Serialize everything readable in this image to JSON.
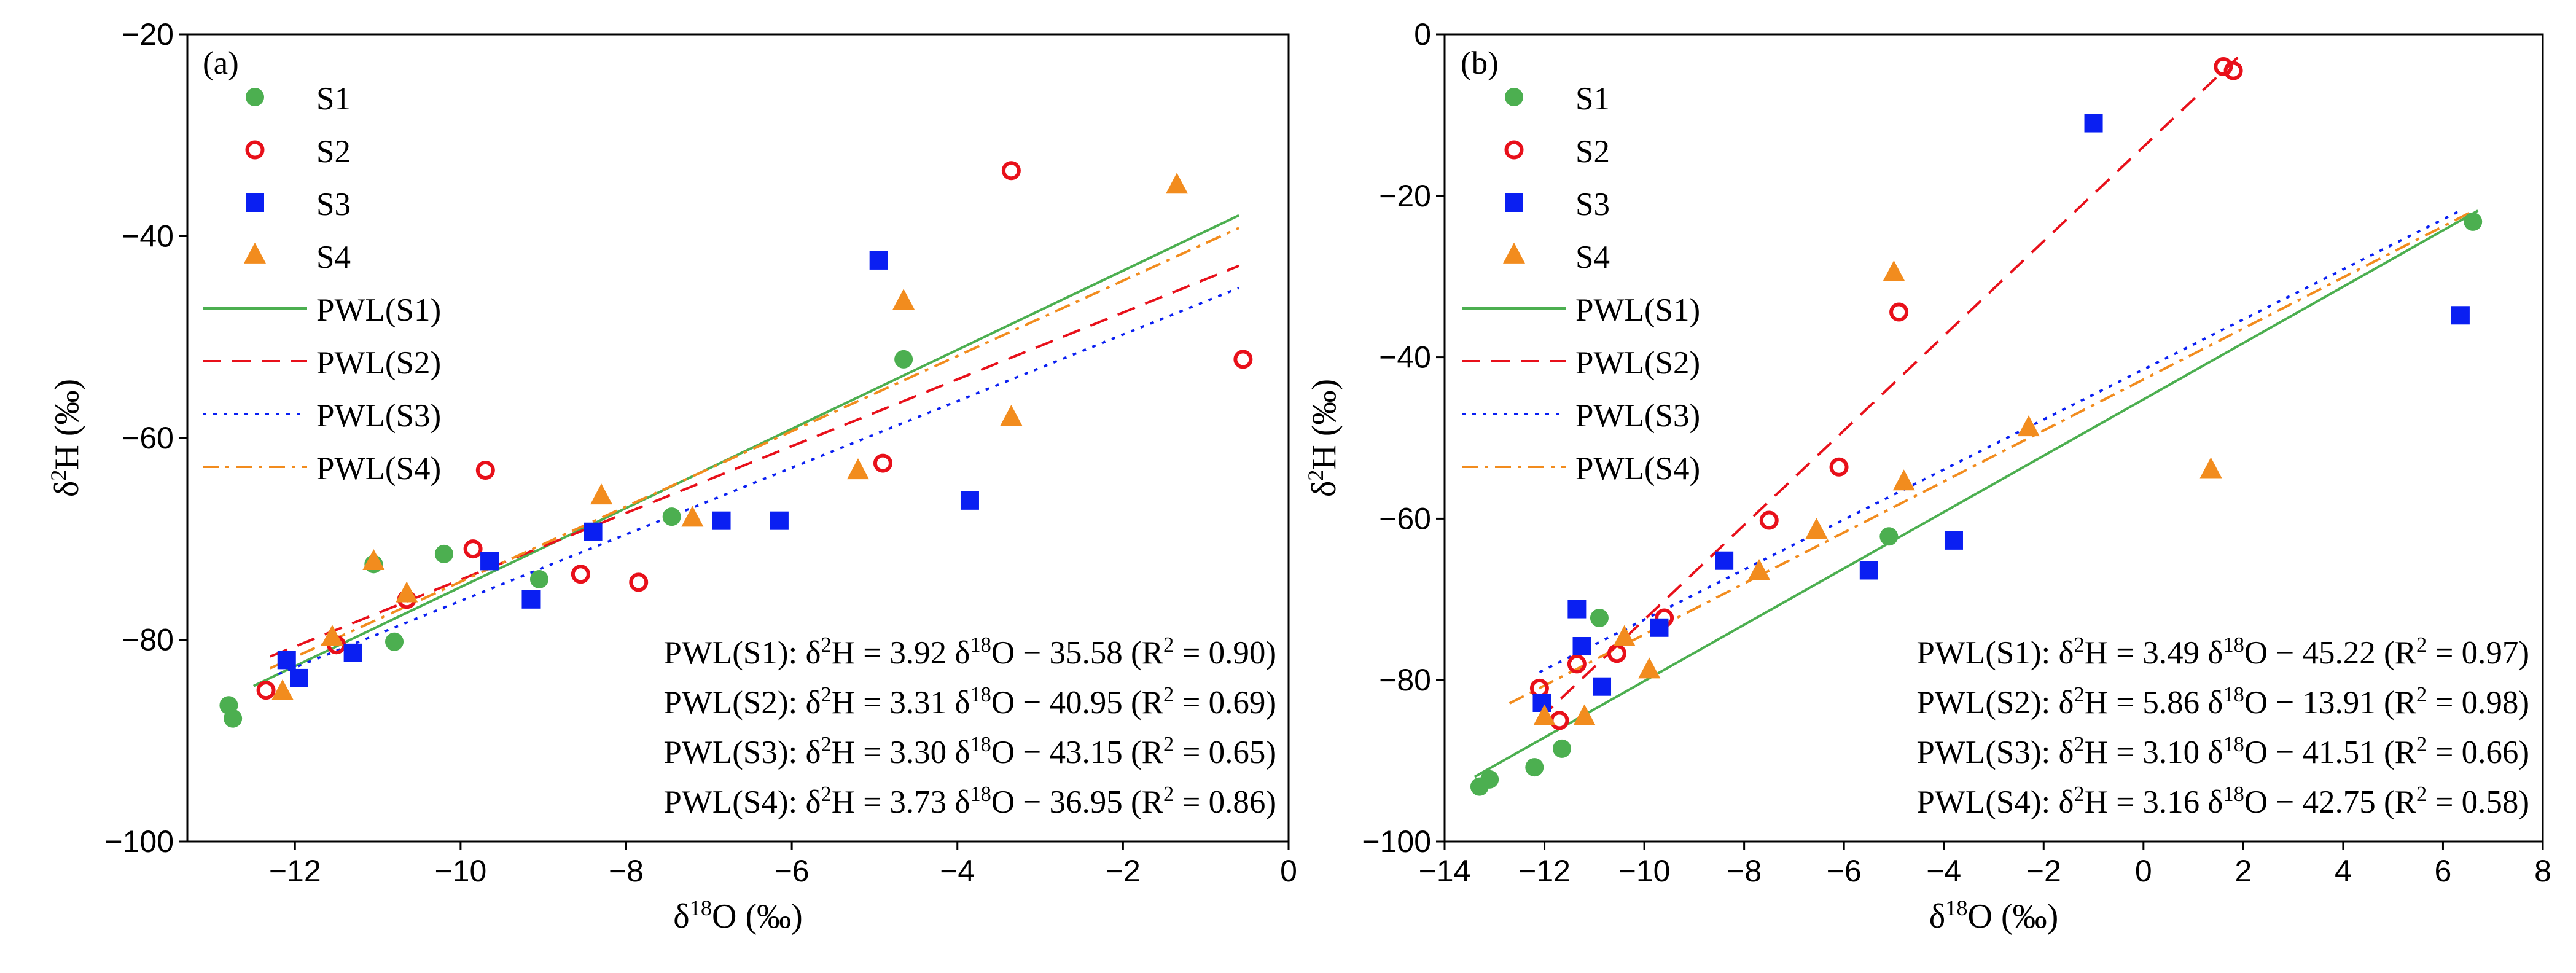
{
  "colors": {
    "S1": "#4caf50",
    "S2": "#e8101a",
    "S3": "#0a1ff2",
    "S4": "#f28c1e"
  },
  "chart_data": [
    {
      "type": "scatter",
      "panel": "(a)",
      "xlabel_main": "δ",
      "xlabel_sup": "18",
      "xlabel_rest": "O (‰)",
      "ylabel_main": "δ",
      "ylabel_sup": "2",
      "ylabel_rest": "H (‰)",
      "xlim": [
        -13.3,
        0
      ],
      "ylim": [
        -100,
        -20
      ],
      "xticks": [
        -12,
        -10,
        -8,
        -6,
        -4,
        -2,
        0
      ],
      "xtick_labels": [
        "−12",
        "−10",
        "−8",
        "−6",
        "−4",
        "−2",
        "0"
      ],
      "yticks": [
        -100,
        -80,
        -60,
        -40,
        -20
      ],
      "ytick_labels": [
        "−100",
        "−80",
        "−60",
        "−40",
        "−20"
      ],
      "legend": [
        "S1",
        "S2",
        "S3",
        "S4",
        "PWL(S1)",
        "PWL(S2)",
        "PWL(S3)",
        "PWL(S4)"
      ],
      "series": [
        {
          "name": "S1",
          "marker": "circle-filled",
          "x": [
            -12.8,
            -12.75,
            -11.05,
            -10.8,
            -10.2,
            -9.05,
            -7.45,
            -4.65
          ],
          "y": [
            -86.5,
            -87.8,
            -72.5,
            -80.2,
            -71.5,
            -74.0,
            -67.8,
            -52.2
          ]
        },
        {
          "name": "S2",
          "marker": "circle-open",
          "x": [
            -12.35,
            -11.5,
            -10.65,
            -9.85,
            -9.7,
            -8.55,
            -7.85,
            -4.9,
            -3.35,
            -0.55
          ],
          "y": [
            -85.0,
            -80.5,
            -76.0,
            -71.0,
            -63.2,
            -73.5,
            -74.3,
            -62.5,
            -33.5,
            -52.2
          ]
        },
        {
          "name": "S3",
          "marker": "square-filled",
          "x": [
            -12.1,
            -11.95,
            -11.3,
            -9.65,
            -9.15,
            -8.4,
            -6.85,
            -6.15,
            -4.95,
            -3.85
          ],
          "y": [
            -82.0,
            -83.8,
            -81.3,
            -72.2,
            -76.0,
            -69.3,
            -68.2,
            -68.2,
            -42.4,
            -66.2
          ]
        },
        {
          "name": "S4",
          "marker": "triangle-filled",
          "x": [
            -12.15,
            -11.55,
            -11.05,
            -10.65,
            -8.3,
            -7.2,
            -5.2,
            -4.65,
            -3.35,
            -1.35
          ],
          "y": [
            -85.2,
            -79.8,
            -72.3,
            -75.5,
            -65.8,
            -68.0,
            -63.3,
            -46.5,
            -58.0,
            -35.0
          ]
        }
      ],
      "fits": [
        {
          "name": "PWL(S1)",
          "style": "solid",
          "slope": 3.92,
          "intercept": -35.58,
          "x_range": [
            -12.5,
            -0.6
          ]
        },
        {
          "name": "PWL(S2)",
          "style": "dashed",
          "slope": 3.31,
          "intercept": -40.95,
          "x_range": [
            -12.3,
            -0.6
          ]
        },
        {
          "name": "PWL(S3)",
          "style": "dotted",
          "slope": 3.3,
          "intercept": -43.15,
          "x_range": [
            -12.2,
            -0.6
          ]
        },
        {
          "name": "PWL(S4)",
          "style": "dashdot",
          "slope": 3.73,
          "intercept": -36.95,
          "x_range": [
            -12.3,
            -0.6
          ]
        }
      ],
      "equations": [
        {
          "pre": "PWL(S1): δ",
          "sup1": "2",
          "mid": "H = 3.92 δ",
          "sup2": "18",
          "post": "O − 35.58 (R",
          "sup3": "2",
          "end": " = 0.90)"
        },
        {
          "pre": "PWL(S2): δ",
          "sup1": "2",
          "mid": "H = 3.31 δ",
          "sup2": "18",
          "post": "O − 40.95 (R",
          "sup3": "2",
          "end": " = 0.69)"
        },
        {
          "pre": "PWL(S3): δ",
          "sup1": "2",
          "mid": "H = 3.30 δ",
          "sup2": "18",
          "post": "O − 43.15 (R",
          "sup3": "2",
          "end": " = 0.65)"
        },
        {
          "pre": "PWL(S4): δ",
          "sup1": "2",
          "mid": "H = 3.73 δ",
          "sup2": "18",
          "post": "O − 36.95 (R",
          "sup3": "2",
          "end": " = 0.86)"
        }
      ]
    },
    {
      "type": "scatter",
      "panel": "(b)",
      "xlabel_main": "δ",
      "xlabel_sup": "18",
      "xlabel_rest": "O (‰)",
      "ylabel_main": "δ",
      "ylabel_sup": "2",
      "ylabel_rest": "H (‰)",
      "xlim": [
        -14,
        8
      ],
      "ylim": [
        -100,
        0
      ],
      "xticks": [
        -14,
        -12,
        -10,
        -8,
        -6,
        -4,
        -2,
        0,
        2,
        4,
        6,
        8
      ],
      "xtick_labels": [
        "−14",
        "−12",
        "−10",
        "−8",
        "−6",
        "−4",
        "−2",
        "0",
        "2",
        "4",
        "6",
        "8"
      ],
      "yticks": [
        -100,
        -80,
        -60,
        -40,
        -20,
        0
      ],
      "ytick_labels": [
        "−100",
        "−80",
        "−60",
        "−40",
        "−20",
        "0"
      ],
      "legend": [
        "S1",
        "S2",
        "S3",
        "S4",
        "PWL(S1)",
        "PWL(S2)",
        "PWL(S3)",
        "PWL(S4)"
      ],
      "series": [
        {
          "name": "S1",
          "marker": "circle-filled",
          "x": [
            -13.3,
            -13.1,
            -12.2,
            -11.65,
            -10.9,
            -5.1,
            6.6
          ],
          "y": [
            -93.2,
            -92.3,
            -90.8,
            -88.5,
            -72.3,
            -62.2,
            -23.2
          ]
        },
        {
          "name": "S2",
          "marker": "circle-open",
          "x": [
            -12.1,
            -11.7,
            -11.35,
            -10.55,
            -9.6,
            -7.5,
            -6.1,
            -4.9,
            1.6,
            1.8
          ],
          "y": [
            -81.0,
            -85.0,
            -78.0,
            -76.7,
            -72.3,
            -60.2,
            -53.6,
            -34.4,
            -4.0,
            -4.5
          ]
        },
        {
          "name": "S3",
          "marker": "square-filled",
          "x": [
            -12.05,
            -11.35,
            -11.25,
            -10.85,
            -9.7,
            -8.4,
            -5.5,
            -3.8,
            -1.0,
            6.35
          ],
          "y": [
            -82.8,
            -71.2,
            -75.8,
            -80.8,
            -73.5,
            -65.2,
            -66.4,
            -62.7,
            -11.0,
            -34.8
          ]
        },
        {
          "name": "S4",
          "marker": "triangle-filled",
          "x": [
            -12.0,
            -11.2,
            -10.4,
            -9.9,
            -7.7,
            -6.55,
            -5.0,
            -4.8,
            -2.3,
            1.35
          ],
          "y": [
            -84.6,
            -84.6,
            -74.8,
            -78.8,
            -66.6,
            -61.5,
            -29.6,
            -55.5,
            -48.8,
            -54.0
          ]
        }
      ],
      "fits": [
        {
          "name": "PWL(S1)",
          "style": "solid",
          "slope": 3.49,
          "intercept": -45.22,
          "x_range": [
            -13.4,
            6.7
          ]
        },
        {
          "name": "PWL(S2)",
          "style": "dashed",
          "slope": 5.86,
          "intercept": -13.91,
          "x_range": [
            -12.1,
            1.9
          ]
        },
        {
          "name": "PWL(S3)",
          "style": "dotted",
          "slope": 3.1,
          "intercept": -41.51,
          "x_range": [
            -12.1,
            6.4
          ]
        },
        {
          "name": "PWL(S4)",
          "style": "dashdot",
          "slope": 3.16,
          "intercept": -42.75,
          "x_range": [
            -12.7,
            6.6
          ]
        }
      ],
      "equations": [
        {
          "pre": "PWL(S1): δ",
          "sup1": "2",
          "mid": "H = 3.49 δ",
          "sup2": "18",
          "post": "O − 45.22 (R",
          "sup3": "2",
          "end": " = 0.97)"
        },
        {
          "pre": "PWL(S2): δ",
          "sup1": "2",
          "mid": "H = 5.86 δ",
          "sup2": "18",
          "post": "O − 13.91 (R",
          "sup3": "2",
          "end": " = 0.98)"
        },
        {
          "pre": "PWL(S3): δ",
          "sup1": "2",
          "mid": "H = 3.10 δ",
          "sup2": "18",
          "post": "O − 41.51 (R",
          "sup3": "2",
          "end": " = 0.66)"
        },
        {
          "pre": "PWL(S4): δ",
          "sup1": "2",
          "mid": "H = 3.16 δ",
          "sup2": "18",
          "post": "O − 42.75 (R",
          "sup3": "2",
          "end": " = 0.58)"
        }
      ]
    }
  ]
}
